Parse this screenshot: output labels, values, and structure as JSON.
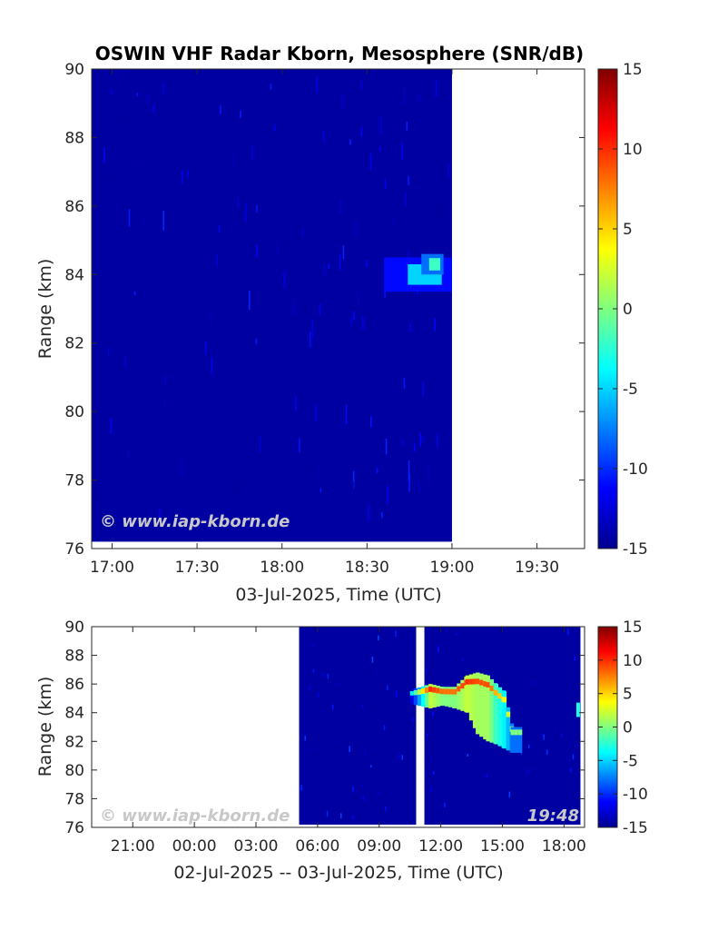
{
  "chart_data": [
    {
      "type": "heatmap",
      "title": "OSWIN VHF Radar Kborn, Mesosphere (SNR/dB)",
      "xlabel": "03-Jul-2025, Time (UTC)",
      "ylabel": "Range (km)",
      "x_ticks": [
        "17:00",
        "17:30",
        "18:00",
        "18:30",
        "19:00",
        "19:30"
      ],
      "x_tick_hours": [
        17.0,
        17.5,
        18.0,
        18.5,
        19.0,
        19.5
      ],
      "xlim_hours": [
        16.88,
        19.78
      ],
      "y_ticks": [
        "76",
        "78",
        "80",
        "82",
        "84",
        "86",
        "88",
        "90"
      ],
      "ylim": [
        76,
        90
      ],
      "data_extent": {
        "x_start_hours": 16.88,
        "x_end_hours": 19.0,
        "y_bottom_km": 76.2
      },
      "features": [
        {
          "x_start_hours": 18.6,
          "x_end_hours": 19.0,
          "y_min": 83.5,
          "y_max": 84.5,
          "peak_snr": -5
        },
        {
          "x_start_hours": 18.82,
          "x_end_hours": 18.95,
          "y_min": 84.0,
          "y_max": 84.6,
          "peak_snr": -2
        }
      ],
      "colorbar": {
        "min": -15,
        "max": 15,
        "ticks": [
          "15",
          "10",
          "5",
          "0",
          "-5",
          "-10",
          "-15"
        ]
      },
      "watermark": "© www.iap-kborn.de"
    },
    {
      "type": "heatmap",
      "xlabel": "02-Jul-2025 -- 03-Jul-2025, Time (UTC)",
      "ylabel": "Range (km)",
      "x_ticks": [
        "21:00",
        "00:00",
        "03:00",
        "06:00",
        "09:00",
        "12:00",
        "15:00",
        "18:00"
      ],
      "x_tick_hours": [
        21,
        24,
        27,
        30,
        33,
        36,
        39,
        42
      ],
      "xlim_hours": [
        19.0,
        43.0
      ],
      "y_ticks": [
        "76",
        "78",
        "80",
        "82",
        "84",
        "86",
        "88",
        "90"
      ],
      "ylim": [
        76,
        90
      ],
      "data_segments": [
        {
          "x_start_hours": 29.1,
          "x_end_hours": 34.8
        },
        {
          "x_start_hours": 35.2,
          "x_end_hours": 42.8
        }
      ],
      "echo_layer": [
        {
          "hour": 34.5,
          "y_min": 84.6,
          "y_max": 85.6,
          "snr": -4
        },
        {
          "hour": 35.4,
          "y_min": 84.3,
          "y_max": 86.0,
          "snr": 10
        },
        {
          "hour": 36.0,
          "y_min": 84.5,
          "y_max": 85.8,
          "snr": 8
        },
        {
          "hour": 36.6,
          "y_min": 84.3,
          "y_max": 85.8,
          "snr": 8
        },
        {
          "hour": 37.2,
          "y_min": 84.0,
          "y_max": 86.6,
          "snr": 10
        },
        {
          "hour": 37.7,
          "y_min": 82.5,
          "y_max": 86.8,
          "snr": 9
        },
        {
          "hour": 38.2,
          "y_min": 82.0,
          "y_max": 86.6,
          "snr": 9
        },
        {
          "hour": 38.6,
          "y_min": 81.8,
          "y_max": 86.0,
          "snr": 6
        },
        {
          "hour": 39.0,
          "y_min": 81.5,
          "y_max": 85.5,
          "snr": 4
        },
        {
          "hour": 39.4,
          "y_min": 81.2,
          "y_max": 83.0,
          "snr": 0
        }
      ],
      "colorbar": {
        "min": -15,
        "max": 15,
        "ticks": [
          "15",
          "10",
          "5",
          "0",
          "-5",
          "-10",
          "-15"
        ]
      },
      "watermark": "© www.iap-kborn.de",
      "timestamp": "19:48"
    }
  ]
}
